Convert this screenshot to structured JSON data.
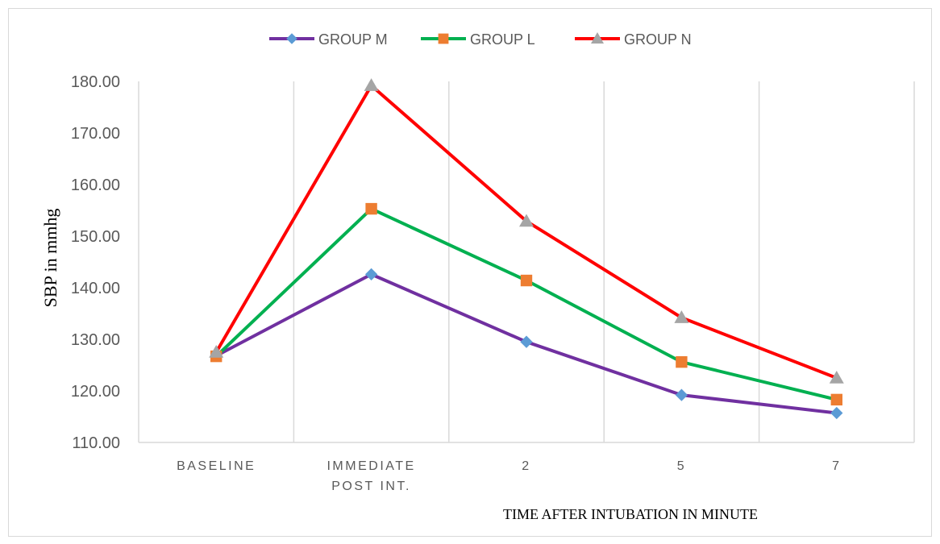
{
  "chart_data": {
    "type": "line",
    "title": "",
    "xlabel": "TIME AFTER INTUBATION IN MINUTE",
    "ylabel": "SBP in mmhg",
    "categories": [
      [
        "BASELINE"
      ],
      [
        "IMMEDIATE",
        "POST INT."
      ],
      [
        "2"
      ],
      [
        "5"
      ],
      [
        "7"
      ]
    ],
    "ylim": [
      110,
      180
    ],
    "yticks": [
      "110.00",
      "120.00",
      "130.00",
      "140.00",
      "150.00",
      "160.00",
      "170.00",
      "180.00"
    ],
    "grid": "vertical",
    "legend_position": "top",
    "series": [
      {
        "name": "GROUP M",
        "color": "#7030a0",
        "marker": "diamond",
        "marker_color": "#5b9bd5",
        "values": [
          126.8,
          142.6,
          129.5,
          119.2,
          115.7
        ]
      },
      {
        "name": "GROUP L",
        "color": "#00b050",
        "marker": "square",
        "marker_color": "#ed7d31",
        "values": [
          126.7,
          155.3,
          141.4,
          125.6,
          118.3
        ]
      },
      {
        "name": "GROUP N",
        "color": "#ff0000",
        "marker": "triangle",
        "marker_color": "#a5a5a5",
        "values": [
          127.5,
          179.2,
          152.9,
          134.2,
          122.5
        ]
      }
    ]
  }
}
